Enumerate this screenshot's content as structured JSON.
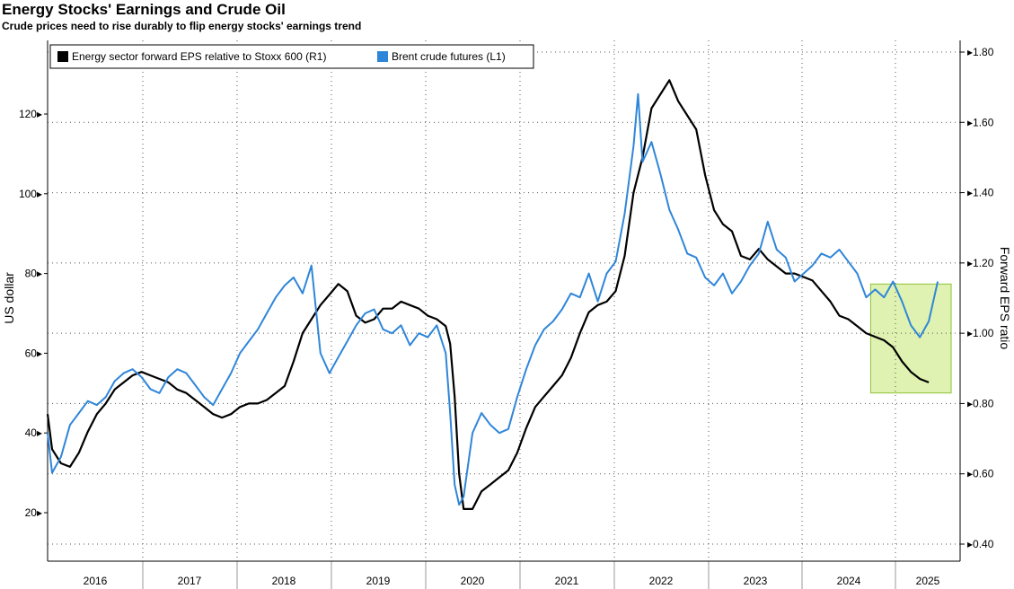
{
  "header": {
    "title": "Energy Stocks' Earnings and Crude Oil",
    "subtitle": "Crude prices need to rise durably to flip energy stocks' earnings trend"
  },
  "colors": {
    "eps": "#000000",
    "brent": "#2f86d9",
    "highlight_fill": "#d9f0a3",
    "highlight_stroke": "#8fc33a"
  },
  "chart_data": {
    "type": "line",
    "legend": {
      "placement": "top-left",
      "items": [
        {
          "label": "Energy sector forward EPS relative to Stoxx 600 (R1)",
          "color": "#000000"
        },
        {
          "label": "Brent crude futures (L1)",
          "color": "#2f86d9"
        }
      ]
    },
    "ylabel_left": "US dollar",
    "ylabel_right": "Forward EPS ratio",
    "ylim_left": [
      10,
      133
    ],
    "ylim_right": [
      0.4,
      1.8
    ],
    "xlim": [
      2015.55,
      2025.75
    ],
    "grid": true,
    "x_tick_labels": [
      "2016",
      "2017",
      "2018",
      "2019",
      "2020",
      "2021",
      "2022",
      "2023",
      "2024",
      "2025"
    ],
    "x_tick_values": [
      2016.0,
      2017.0,
      2018.0,
      2019.0,
      2020.0,
      2021.0,
      2022.0,
      2023.0,
      2024.0,
      2025.0
    ],
    "y_ticks_left": [
      20,
      40,
      60,
      80,
      100,
      120
    ],
    "y_tick_labels_left": [
      "20",
      "40",
      "60",
      "80",
      "100",
      "120"
    ],
    "y_ticks_right": [
      0.4,
      0.6,
      0.8,
      1.0,
      1.2,
      1.4,
      1.6,
      1.8
    ],
    "y_tick_labels_right": [
      "0.40",
      "0.60",
      "0.80",
      "1.00",
      "1.20",
      "1.40",
      "1.60",
      "1.80"
    ],
    "highlight": {
      "x_start": 2024.75,
      "x_end": 2025.65,
      "y_right_start": 0.83,
      "y_right_end": 1.14
    },
    "series": [
      {
        "name": "Energy sector forward EPS relative to Stoxx 600 (R1)",
        "axis": "right",
        "color": "#000000",
        "x": [
          2015.55,
          2015.6,
          2015.7,
          2015.8,
          2015.9,
          2016.0,
          2016.1,
          2016.2,
          2016.3,
          2016.4,
          2016.5,
          2016.6,
          2016.7,
          2016.8,
          2016.9,
          2017.0,
          2017.1,
          2017.2,
          2017.3,
          2017.4,
          2017.5,
          2017.6,
          2017.7,
          2017.8,
          2017.9,
          2018.0,
          2018.1,
          2018.2,
          2018.3,
          2018.4,
          2018.5,
          2018.6,
          2018.7,
          2018.8,
          2018.9,
          2019.0,
          2019.1,
          2019.2,
          2019.3,
          2019.4,
          2019.5,
          2019.6,
          2019.7,
          2019.8,
          2019.9,
          2020.0,
          2020.05,
          2020.1,
          2020.15,
          2020.2,
          2020.3,
          2020.4,
          2020.5,
          2020.6,
          2020.7,
          2020.8,
          2020.9,
          2021.0,
          2021.1,
          2021.2,
          2021.3,
          2021.4,
          2021.5,
          2021.6,
          2021.7,
          2021.8,
          2021.9,
          2022.0,
          2022.1,
          2022.2,
          2022.3,
          2022.4,
          2022.5,
          2022.6,
          2022.7,
          2022.8,
          2022.9,
          2023.0,
          2023.1,
          2023.2,
          2023.3,
          2023.4,
          2023.5,
          2023.6,
          2023.7,
          2023.8,
          2023.9,
          2024.0,
          2024.1,
          2024.2,
          2024.3,
          2024.4,
          2024.5,
          2024.6,
          2024.7,
          2024.8,
          2024.9,
          2025.0,
          2025.1,
          2025.2,
          2025.3,
          2025.4
        ],
        "y": [
          0.77,
          0.67,
          0.63,
          0.62,
          0.66,
          0.72,
          0.77,
          0.8,
          0.84,
          0.86,
          0.88,
          0.89,
          0.88,
          0.87,
          0.86,
          0.84,
          0.83,
          0.81,
          0.79,
          0.77,
          0.76,
          0.77,
          0.79,
          0.8,
          0.8,
          0.81,
          0.83,
          0.85,
          0.92,
          1.0,
          1.04,
          1.08,
          1.11,
          1.14,
          1.12,
          1.05,
          1.03,
          1.04,
          1.07,
          1.07,
          1.09,
          1.08,
          1.07,
          1.05,
          1.04,
          1.02,
          0.97,
          0.82,
          0.6,
          0.5,
          0.5,
          0.55,
          0.57,
          0.59,
          0.61,
          0.66,
          0.73,
          0.79,
          0.82,
          0.85,
          0.88,
          0.93,
          1.0,
          1.06,
          1.08,
          1.09,
          1.12,
          1.22,
          1.4,
          1.5,
          1.64,
          1.68,
          1.72,
          1.66,
          1.62,
          1.58,
          1.45,
          1.35,
          1.31,
          1.29,
          1.22,
          1.21,
          1.24,
          1.21,
          1.19,
          1.17,
          1.17,
          1.16,
          1.15,
          1.12,
          1.09,
          1.05,
          1.04,
          1.02,
          1.0,
          0.99,
          0.98,
          0.96,
          0.92,
          0.89,
          0.87,
          0.86
        ]
      },
      {
        "name": "Brent crude futures (L1)",
        "axis": "left",
        "color": "#2f86d9",
        "x": [
          2015.55,
          2015.6,
          2015.7,
          2015.8,
          2015.9,
          2016.0,
          2016.1,
          2016.2,
          2016.3,
          2016.4,
          2016.5,
          2016.6,
          2016.7,
          2016.8,
          2016.9,
          2017.0,
          2017.1,
          2017.2,
          2017.3,
          2017.4,
          2017.5,
          2017.6,
          2017.7,
          2017.8,
          2017.9,
          2018.0,
          2018.1,
          2018.2,
          2018.3,
          2018.4,
          2018.5,
          2018.6,
          2018.7,
          2018.8,
          2018.9,
          2019.0,
          2019.1,
          2019.2,
          2019.3,
          2019.4,
          2019.5,
          2019.6,
          2019.7,
          2019.8,
          2019.9,
          2020.0,
          2020.05,
          2020.1,
          2020.15,
          2020.2,
          2020.3,
          2020.4,
          2020.5,
          2020.6,
          2020.7,
          2020.8,
          2020.9,
          2021.0,
          2021.1,
          2021.2,
          2021.3,
          2021.4,
          2021.5,
          2021.6,
          2021.7,
          2021.8,
          2021.9,
          2022.0,
          2022.1,
          2022.15,
          2022.2,
          2022.3,
          2022.4,
          2022.5,
          2022.6,
          2022.7,
          2022.8,
          2022.9,
          2023.0,
          2023.1,
          2023.2,
          2023.3,
          2023.4,
          2023.5,
          2023.6,
          2023.7,
          2023.8,
          2023.9,
          2024.0,
          2024.1,
          2024.2,
          2024.3,
          2024.4,
          2024.5,
          2024.6,
          2024.7,
          2024.8,
          2024.9,
          2025.0,
          2025.1,
          2025.2,
          2025.3,
          2025.4,
          2025.5
        ],
        "y": [
          40,
          30,
          34,
          42,
          45,
          48,
          47,
          49,
          53,
          55,
          56,
          54,
          51,
          50,
          54,
          56,
          55,
          52,
          49,
          47,
          51,
          55,
          60,
          63,
          66,
          70,
          74,
          77,
          79,
          75,
          82,
          60,
          55,
          59,
          63,
          67,
          70,
          71,
          66,
          65,
          67,
          62,
          65,
          64,
          67,
          60,
          45,
          27,
          22,
          24,
          40,
          45,
          42,
          40,
          41,
          49,
          56,
          62,
          66,
          68,
          71,
          75,
          74,
          80,
          73,
          80,
          83,
          95,
          112,
          125,
          108,
          113,
          105,
          96,
          91,
          85,
          84,
          79,
          77,
          80,
          75,
          78,
          82,
          85,
          93,
          86,
          84,
          78,
          80,
          82,
          85,
          84,
          86,
          83,
          80,
          74,
          76,
          74,
          78,
          73,
          67,
          64,
          68,
          78
        ]
      }
    ]
  }
}
